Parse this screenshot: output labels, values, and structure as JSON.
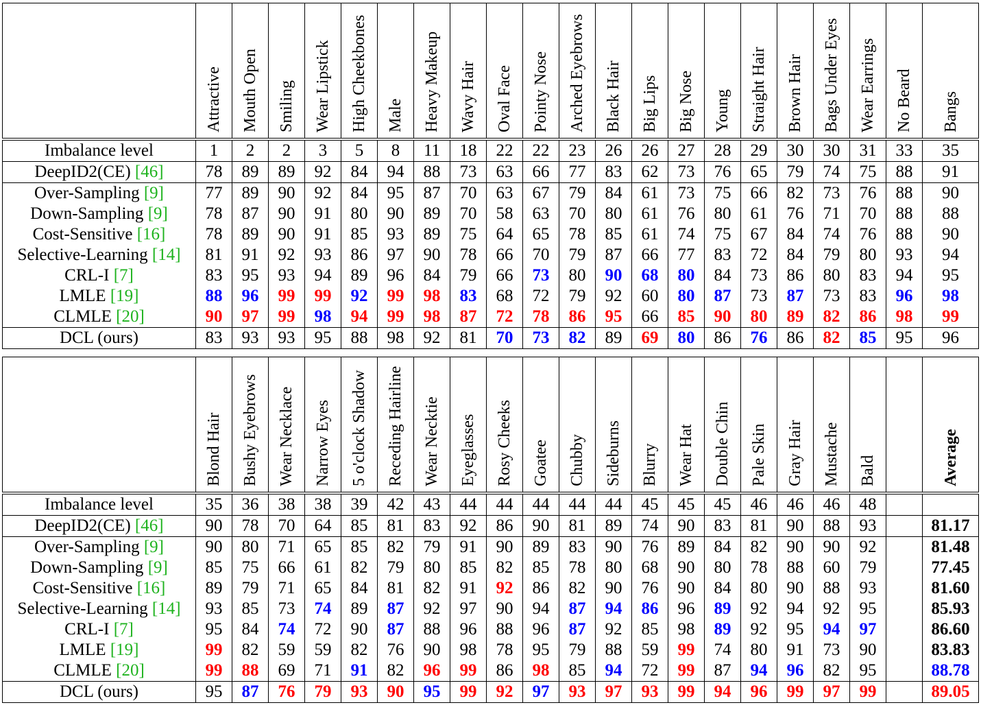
{
  "table1": {
    "columns": [
      "Attractive",
      "Mouth Open",
      "Smiling",
      "Wear Lipstick",
      "High Cheekbones",
      "Male",
      "Heavy Makeup",
      "Wavy Hair",
      "Oval Face",
      "Pointy Nose",
      "Arched Eyebrows",
      "Black Hair",
      "Big Lips",
      "Big Nose",
      "Young",
      "Straight Hair",
      "Brown Hair",
      "Bags Under Eyes",
      "Wear Earrings",
      "No Beard",
      "Bangs"
    ],
    "imbalance_label": "Imbalance level",
    "imbalance": [
      "1",
      "2",
      "2",
      "3",
      "5",
      "8",
      "11",
      "18",
      "22",
      "22",
      "23",
      "26",
      "26",
      "27",
      "28",
      "29",
      "30",
      "30",
      "31",
      "33",
      "35"
    ],
    "rows": [
      {
        "method": "DeepID2(CE) ",
        "cite": "[46]",
        "values": [
          "78",
          "89",
          "89",
          "92",
          "84",
          "94",
          "88",
          "73",
          "63",
          "66",
          "77",
          "83",
          "62",
          "73",
          "76",
          "65",
          "79",
          "74",
          "75",
          "88",
          "91"
        ],
        "styles": [
          "",
          "",
          "",
          "",
          "",
          "",
          "",
          "",
          "",
          "",
          "",
          "",
          "",
          "",
          "",
          "",
          "",
          "",
          "",
          "",
          ""
        ]
      },
      {
        "method": "Over-Sampling ",
        "cite": "[9]",
        "values": [
          "77",
          "89",
          "90",
          "92",
          "84",
          "95",
          "87",
          "70",
          "63",
          "67",
          "79",
          "84",
          "61",
          "73",
          "75",
          "66",
          "82",
          "73",
          "76",
          "88",
          "90"
        ],
        "styles": [
          "",
          "",
          "",
          "",
          "",
          "",
          "",
          "",
          "",
          "",
          "",
          "",
          "",
          "",
          "",
          "",
          "",
          "",
          "",
          "",
          ""
        ]
      },
      {
        "method": "Down-Sampling ",
        "cite": "[9]",
        "values": [
          "78",
          "87",
          "90",
          "91",
          "80",
          "90",
          "89",
          "70",
          "58",
          "63",
          "70",
          "80",
          "61",
          "76",
          "80",
          "61",
          "76",
          "71",
          "70",
          "88",
          "88"
        ],
        "styles": [
          "",
          "",
          "",
          "",
          "",
          "",
          "",
          "",
          "",
          "",
          "",
          "",
          "",
          "",
          "",
          "",
          "",
          "",
          "",
          "",
          ""
        ]
      },
      {
        "method": "Cost-Sensitive ",
        "cite": "[16]",
        "values": [
          "78",
          "89",
          "90",
          "91",
          "85",
          "93",
          "89",
          "75",
          "64",
          "65",
          "78",
          "85",
          "61",
          "74",
          "75",
          "67",
          "84",
          "74",
          "76",
          "88",
          "90"
        ],
        "styles": [
          "",
          "",
          "",
          "",
          "",
          "",
          "",
          "",
          "",
          "",
          "",
          "",
          "",
          "",
          "",
          "",
          "",
          "",
          "",
          "",
          ""
        ]
      },
      {
        "method": "Selective-Learning ",
        "cite": "[14]",
        "values": [
          "81",
          "91",
          "92",
          "93",
          "86",
          "97",
          "90",
          "78",
          "66",
          "70",
          "79",
          "87",
          "66",
          "77",
          "83",
          "72",
          "84",
          "79",
          "80",
          "93",
          "94"
        ],
        "styles": [
          "",
          "",
          "",
          "",
          "",
          "",
          "",
          "",
          "",
          "",
          "",
          "",
          "",
          "",
          "",
          "",
          "",
          "",
          "",
          "",
          ""
        ]
      },
      {
        "method": "CRL-I ",
        "cite": "[7]",
        "values": [
          "83",
          "95",
          "93",
          "94",
          "89",
          "96",
          "84",
          "79",
          "66",
          "73",
          "80",
          "90",
          "68",
          "80",
          "84",
          "73",
          "86",
          "80",
          "83",
          "94",
          "95"
        ],
        "styles": [
          "",
          "",
          "",
          "",
          "",
          "",
          "",
          "",
          "",
          "blue",
          "",
          "blue",
          "blue",
          "blue",
          "",
          "",
          "",
          "",
          "",
          "",
          ""
        ]
      },
      {
        "method": "LMLE ",
        "cite": "[19]",
        "values": [
          "88",
          "96",
          "99",
          "99",
          "92",
          "99",
          "98",
          "83",
          "68",
          "72",
          "79",
          "92",
          "60",
          "80",
          "87",
          "73",
          "87",
          "73",
          "83",
          "96",
          "98"
        ],
        "styles": [
          "blue",
          "blue",
          "red",
          "red",
          "blue",
          "red",
          "red",
          "blue",
          "",
          "",
          "",
          "",
          "",
          "blue",
          "blue",
          "",
          "blue",
          "",
          "",
          "blue",
          "blue"
        ]
      },
      {
        "method": "CLMLE ",
        "cite": "[20]",
        "values": [
          "90",
          "97",
          "99",
          "98",
          "94",
          "99",
          "98",
          "87",
          "72",
          "78",
          "86",
          "95",
          "66",
          "85",
          "90",
          "80",
          "89",
          "82",
          "86",
          "98",
          "99"
        ],
        "styles": [
          "red",
          "red",
          "red",
          "blue",
          "red",
          "red",
          "red",
          "red",
          "red",
          "red",
          "red",
          "red",
          "",
          "red",
          "red",
          "red",
          "red",
          "red",
          "red",
          "red",
          "red"
        ]
      },
      {
        "method": "DCL (ours)",
        "cite": "",
        "values": [
          "83",
          "93",
          "93",
          "95",
          "88",
          "98",
          "92",
          "81",
          "70",
          "73",
          "82",
          "89",
          "69",
          "80",
          "86",
          "76",
          "86",
          "82",
          "85",
          "95",
          "96"
        ],
        "styles": [
          "",
          "",
          "",
          "",
          "",
          "",
          "",
          "",
          "blue",
          "blue",
          "blue",
          "",
          "red",
          "blue",
          "",
          "blue",
          "",
          "red",
          "blue",
          "",
          ""
        ]
      }
    ]
  },
  "table2": {
    "columns": [
      "Blond Hair",
      "Bushy Eyebrows",
      "Wear Necklace",
      "Narrow Eyes",
      "5 o'clock Shadow",
      "Receding Hairline",
      "Wear Necktie",
      "Eyeglasses",
      "Rosy Cheeks",
      "Goatee",
      "Chubby",
      "Sideburns",
      "Blurry",
      "Wear Hat",
      "Double Chin",
      "Pale Skin",
      "Gray Hair",
      "Mustache",
      "Bald",
      "",
      "Average"
    ],
    "imbalance_label": "Imbalance level",
    "imbalance": [
      "35",
      "36",
      "38",
      "38",
      "39",
      "42",
      "43",
      "44",
      "44",
      "44",
      "44",
      "44",
      "45",
      "45",
      "45",
      "46",
      "46",
      "46",
      "48",
      "",
      ""
    ],
    "rows": [
      {
        "method": "DeepID2(CE) ",
        "cite": "[46]",
        "values": [
          "90",
          "78",
          "70",
          "64",
          "85",
          "81",
          "83",
          "92",
          "86",
          "90",
          "81",
          "89",
          "74",
          "90",
          "83",
          "81",
          "90",
          "88",
          "93",
          "",
          "81.17"
        ],
        "styles": [
          "",
          "",
          "",
          "",
          "",
          "",
          "",
          "",
          "",
          "",
          "",
          "",
          "",
          "",
          "",
          "",
          "",
          "",
          "",
          "",
          "bold"
        ]
      },
      {
        "method": "Over-Sampling ",
        "cite": "[9]",
        "values": [
          "90",
          "80",
          "71",
          "65",
          "85",
          "82",
          "79",
          "91",
          "90",
          "89",
          "83",
          "90",
          "76",
          "89",
          "84",
          "82",
          "90",
          "90",
          "92",
          "",
          "81.48"
        ],
        "styles": [
          "",
          "",
          "",
          "",
          "",
          "",
          "",
          "",
          "",
          "",
          "",
          "",
          "",
          "",
          "",
          "",
          "",
          "",
          "",
          "",
          "bold"
        ]
      },
      {
        "method": "Down-Sampling ",
        "cite": "[9]",
        "values": [
          "85",
          "75",
          "66",
          "61",
          "82",
          "79",
          "80",
          "85",
          "82",
          "85",
          "78",
          "80",
          "68",
          "90",
          "80",
          "78",
          "88",
          "60",
          "79",
          "",
          "77.45"
        ],
        "styles": [
          "",
          "",
          "",
          "",
          "",
          "",
          "",
          "",
          "",
          "",
          "",
          "",
          "",
          "",
          "",
          "",
          "",
          "",
          "",
          "",
          "bold"
        ]
      },
      {
        "method": "Cost-Sensitive ",
        "cite": "[16]",
        "values": [
          "89",
          "79",
          "71",
          "65",
          "84",
          "81",
          "82",
          "91",
          "92",
          "86",
          "82",
          "90",
          "76",
          "90",
          "84",
          "80",
          "90",
          "88",
          "93",
          "",
          "81.60"
        ],
        "styles": [
          "",
          "",
          "",
          "",
          "",
          "",
          "",
          "",
          "red",
          "",
          "",
          "",
          "",
          "",
          "",
          "",
          "",
          "",
          "",
          "",
          "bold"
        ]
      },
      {
        "method": "Selective-Learning ",
        "cite": "[14]",
        "values": [
          "93",
          "85",
          "73",
          "74",
          "89",
          "87",
          "92",
          "97",
          "90",
          "94",
          "87",
          "94",
          "86",
          "96",
          "89",
          "92",
          "94",
          "92",
          "95",
          "",
          "85.93"
        ],
        "styles": [
          "",
          "",
          "",
          "blue",
          "",
          "blue",
          "",
          "",
          "",
          "",
          "blue",
          "blue",
          "blue",
          "",
          "blue",
          "",
          "",
          "",
          "",
          "",
          "bold"
        ]
      },
      {
        "method": "CRL-I ",
        "cite": "[7]",
        "values": [
          "95",
          "84",
          "74",
          "72",
          "90",
          "87",
          "88",
          "96",
          "88",
          "96",
          "87",
          "92",
          "85",
          "98",
          "89",
          "92",
          "95",
          "94",
          "97",
          "",
          "86.60"
        ],
        "styles": [
          "",
          "",
          "blue",
          "",
          "",
          "blue",
          "",
          "",
          "",
          "",
          "blue",
          "",
          "",
          "",
          "blue",
          "",
          "",
          "blue",
          "blue",
          "",
          "bold"
        ]
      },
      {
        "method": "LMLE ",
        "cite": "[19]",
        "values": [
          "99",
          "82",
          "59",
          "59",
          "82",
          "76",
          "90",
          "98",
          "78",
          "95",
          "79",
          "88",
          "59",
          "99",
          "74",
          "80",
          "91",
          "73",
          "90",
          "",
          "83.83"
        ],
        "styles": [
          "red",
          "",
          "",
          "",
          "",
          "",
          "",
          "",
          "",
          "",
          "",
          "",
          "",
          "red",
          "",
          "",
          "",
          "",
          "",
          "",
          "bold"
        ]
      },
      {
        "method": "CLMLE ",
        "cite": "[20]",
        "values": [
          "99",
          "88",
          "69",
          "71",
          "91",
          "82",
          "96",
          "99",
          "86",
          "98",
          "85",
          "94",
          "72",
          "99",
          "87",
          "94",
          "96",
          "82",
          "95",
          "",
          "88.78"
        ],
        "styles": [
          "red",
          "red",
          "",
          "",
          "blue",
          "",
          "red",
          "red",
          "",
          "red",
          "",
          "blue",
          "",
          "red",
          "",
          "blue",
          "blue",
          "",
          "",
          "",
          "blue"
        ]
      },
      {
        "method": "DCL (ours)",
        "cite": "",
        "values": [
          "95",
          "87",
          "76",
          "79",
          "93",
          "90",
          "95",
          "99",
          "92",
          "97",
          "93",
          "97",
          "93",
          "99",
          "94",
          "96",
          "99",
          "97",
          "99",
          "",
          "89.05"
        ],
        "styles": [
          "",
          "blue",
          "red",
          "red",
          "red",
          "red",
          "blue",
          "red",
          "red",
          "blue",
          "red",
          "red",
          "red",
          "red",
          "red",
          "red",
          "red",
          "red",
          "red",
          "",
          "red"
        ]
      }
    ]
  }
}
